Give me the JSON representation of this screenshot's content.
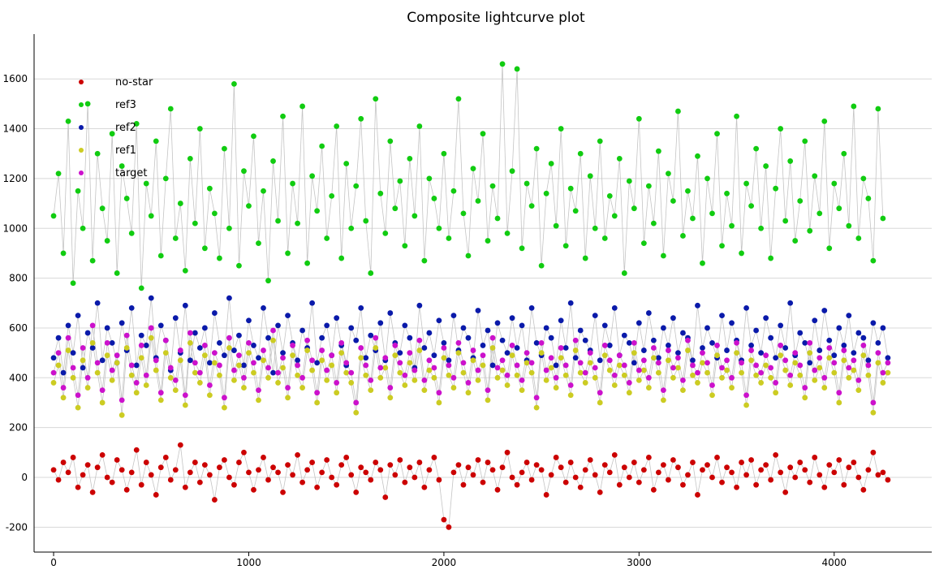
{
  "chart_data": {
    "type": "scatter",
    "title": "Composite lightcurve plot",
    "xlabel": "",
    "ylabel": "",
    "xlim": [
      -100,
      4500
    ],
    "ylim": [
      -300,
      1780
    ],
    "xticks": [
      0,
      1000,
      2000,
      3000,
      4000
    ],
    "yticks": [
      -200,
      0,
      200,
      400,
      600,
      800,
      1000,
      1200,
      1400,
      1600
    ],
    "grid": "horizontal",
    "legend_position": "top-left",
    "connect_points": true,
    "x_step": 25,
    "series": [
      {
        "name": "no-star",
        "color": "#cc0000",
        "values": [
          30,
          -10,
          60,
          20,
          80,
          -40,
          10,
          50,
          -60,
          40,
          90,
          0,
          -20,
          70,
          30,
          -50,
          20,
          110,
          -30,
          60,
          10,
          -70,
          40,
          80,
          -10,
          30,
          130,
          -40,
          20,
          60,
          -20,
          50,
          10,
          -90,
          40,
          70,
          0,
          -30,
          60,
          100,
          20,
          -50,
          30,
          80,
          -10,
          40,
          20,
          -60,
          50,
          10,
          90,
          -20,
          30,
          60,
          -40,
          20,
          70,
          0,
          -30,
          50,
          80,
          10,
          -60,
          40,
          20,
          -10,
          60,
          30,
          -80,
          50,
          10,
          70,
          -20,
          40,
          0,
          60,
          -40,
          30,
          80,
          -10,
          -170,
          -200,
          20,
          50,
          -30,
          40,
          10,
          70,
          -20,
          60,
          30,
          -50,
          40,
          100,
          0,
          -30,
          20,
          60,
          -10,
          50,
          30,
          -70,
          10,
          80,
          40,
          -20,
          60,
          0,
          -40,
          30,
          70,
          10,
          -60,
          50,
          20,
          90,
          -30,
          40,
          0,
          60,
          -20,
          30,
          80,
          -50,
          20,
          50,
          -10,
          70,
          40,
          -30,
          10,
          60,
          -70,
          30,
          50,
          0,
          80,
          -20,
          40,
          20,
          -40,
          60,
          10,
          70,
          -30,
          30,
          50,
          -10,
          90,
          20,
          -60,
          40,
          0,
          60,
          30,
          -20,
          80,
          10,
          -40,
          50,
          20,
          70,
          -30,
          40,
          60,
          0,
          -50,
          30,
          100,
          10,
          20,
          -10
        ]
      },
      {
        "name": "ref3",
        "color": "#11cc11",
        "values": [
          1050,
          1220,
          900,
          1430,
          780,
          1150,
          1000,
          1500,
          870,
          1300,
          1080,
          950,
          1380,
          820,
          1250,
          1120,
          980,
          1420,
          760,
          1180,
          1050,
          1350,
          890,
          1200,
          1480,
          960,
          1100,
          830,
          1280,
          1020,
          1400,
          920,
          1160,
          1060,
          880,
          1320,
          1000,
          1580,
          850,
          1230,
          1090,
          1370,
          940,
          1150,
          790,
          1270,
          1030,
          1450,
          900,
          1180,
          1020,
          1490,
          860,
          1210,
          1070,
          1330,
          960,
          1130,
          1410,
          880,
          1260,
          1000,
          1170,
          1440,
          1030,
          820,
          1520,
          1140,
          980,
          1350,
          1080,
          1190,
          930,
          1280,
          1050,
          1410,
          870,
          1200,
          1120,
          1000,
          1300,
          960,
          1150,
          1520,
          1060,
          890,
          1240,
          1110,
          1380,
          950,
          1170,
          1040,
          1660,
          980,
          1230,
          1640,
          920,
          1180,
          1090,
          1320,
          850,
          1140,
          1260,
          1010,
          1400,
          930,
          1160,
          1070,
          1300,
          880,
          1210,
          1000,
          1350,
          960,
          1130,
          1050,
          1280,
          820,
          1190,
          1080,
          1440,
          940,
          1170,
          1020,
          1310,
          890,
          1220,
          1110,
          1470,
          970,
          1150,
          1040,
          1290,
          860,
          1200,
          1060,
          1380,
          930,
          1140,
          1010,
          1450,
          900,
          1180,
          1090,
          1320,
          1000,
          1250,
          880,
          1160,
          1400,
          1030,
          1270,
          950,
          1110,
          1350,
          990,
          1210,
          1060,
          1430,
          920,
          1180,
          1080,
          1300,
          1010,
          1490,
          960,
          1200,
          1120,
          870,
          1480,
          1040
        ]
      },
      {
        "name": "ref2",
        "color": "#0a1aaa",
        "values": [
          480,
          560,
          420,
          610,
          500,
          650,
          440,
          580,
          520,
          700,
          470,
          600,
          540,
          460,
          620,
          510,
          680,
          450,
          570,
          530,
          720,
          480,
          610,
          550,
          430,
          640,
          500,
          690,
          470,
          580,
          520,
          600,
          460,
          660,
          540,
          490,
          720,
          510,
          570,
          450,
          630,
          530,
          480,
          680,
          560,
          420,
          610,
          500,
          650,
          540,
          470,
          590,
          520,
          700,
          460,
          560,
          610,
          490,
          640,
          530,
          450,
          600,
          550,
          680,
          480,
          570,
          510,
          620,
          470,
          660,
          540,
          500,
          610,
          560,
          440,
          690,
          520,
          580,
          490,
          630,
          540,
          470,
          650,
          510,
          600,
          560,
          480,
          670,
          530,
          590,
          450,
          620,
          550,
          500,
          640,
          520,
          610,
          470,
          680,
          540,
          490,
          600,
          560,
          450,
          630,
          520,
          700,
          480,
          590,
          550,
          510,
          650,
          470,
          610,
          530,
          680,
          490,
          570,
          540,
          460,
          620,
          510,
          660,
          550,
          480,
          600,
          530,
          640,
          500,
          580,
          560,
          470,
          690,
          520,
          600,
          540,
          480,
          650,
          510,
          620,
          550,
          470,
          680,
          530,
          590,
          500,
          640,
          560,
          480,
          610,
          520,
          700,
          490,
          580,
          540,
          460,
          630,
          510,
          670,
          550,
          490,
          600,
          530,
          650,
          500,
          580,
          560,
          470,
          620,
          540,
          600,
          480
        ]
      },
      {
        "name": "ref1",
        "color": "#cccc22",
        "values": [
          380,
          450,
          320,
          510,
          400,
          280,
          470,
          360,
          540,
          420,
          300,
          490,
          390,
          460,
          250,
          520,
          410,
          340,
          480,
          370,
          560,
          430,
          310,
          500,
          400,
          350,
          470,
          290,
          540,
          420,
          380,
          490,
          330,
          460,
          410,
          280,
          520,
          390,
          450,
          360,
          500,
          420,
          310,
          470,
          400,
          550,
          380,
          440,
          320,
          490,
          410,
          360,
          510,
          430,
          300,
          470,
          390,
          450,
          340,
          500,
          420,
          380,
          260,
          480,
          410,
          350,
          520,
          400,
          440,
          320,
          490,
          420,
          370,
          460,
          390,
          510,
          350,
          430,
          400,
          300,
          480,
          410,
          360,
          500,
          420,
          340,
          470,
          390,
          450,
          310,
          520,
          400,
          430,
          370,
          490,
          410,
          350,
          460,
          420,
          280,
          500,
          390,
          440,
          360,
          480,
          410,
          330,
          510,
          420,
          380,
          460,
          400,
          300,
          490,
          430,
          370,
          450,
          410,
          340,
          500,
          390,
          430,
          360,
          480,
          420,
          310,
          470,
          400,
          440,
          350,
          510,
          410,
          380,
          460,
          420,
          330,
          490,
          400,
          430,
          360,
          500,
          420,
          290,
          470,
          410,
          380,
          450,
          400,
          340,
          490,
          430,
          370,
          460,
          410,
          320,
          500,
          390,
          440,
          360,
          480,
          420,
          300,
          470,
          400,
          430,
          350,
          490,
          410,
          260,
          460,
          380,
          420
        ]
      },
      {
        "name": "target",
        "color": "#cc11cc",
        "values": [
          420,
          500,
          360,
          560,
          440,
          330,
          520,
          400,
          610,
          460,
          350,
          540,
          430,
          490,
          310,
          570,
          450,
          380,
          530,
          410,
          600,
          470,
          340,
          550,
          440,
          390,
          510,
          330,
          580,
          460,
          420,
          530,
          370,
          500,
          450,
          320,
          560,
          430,
          490,
          400,
          540,
          460,
          350,
          510,
          440,
          590,
          420,
          480,
          360,
          530,
          450,
          400,
          550,
          470,
          340,
          510,
          430,
          490,
          380,
          540,
          460,
          420,
          300,
          520,
          450,
          390,
          560,
          440,
          480,
          360,
          530,
          460,
          410,
          500,
          430,
          550,
          390,
          470,
          440,
          340,
          520,
          450,
          400,
          540,
          460,
          380,
          510,
          430,
          490,
          350,
          560,
          440,
          470,
          410,
          530,
          450,
          390,
          500,
          460,
          320,
          540,
          430,
          480,
          400,
          520,
          450,
          370,
          550,
          460,
          420,
          500,
          440,
          340,
          530,
          470,
          410,
          490,
          450,
          380,
          540,
          430,
          470,
          400,
          520,
          460,
          350,
          510,
          440,
          480,
          390,
          550,
          450,
          420,
          500,
          460,
          370,
          530,
          440,
          470,
          400,
          540,
          460,
          330,
          510,
          450,
          420,
          490,
          440,
          380,
          530,
          470,
          410,
          500,
          450,
          360,
          540,
          430,
          480,
          400,
          520,
          460,
          340,
          510,
          440,
          470,
          390,
          530,
          450,
          300,
          500,
          420,
          460
        ]
      }
    ]
  }
}
